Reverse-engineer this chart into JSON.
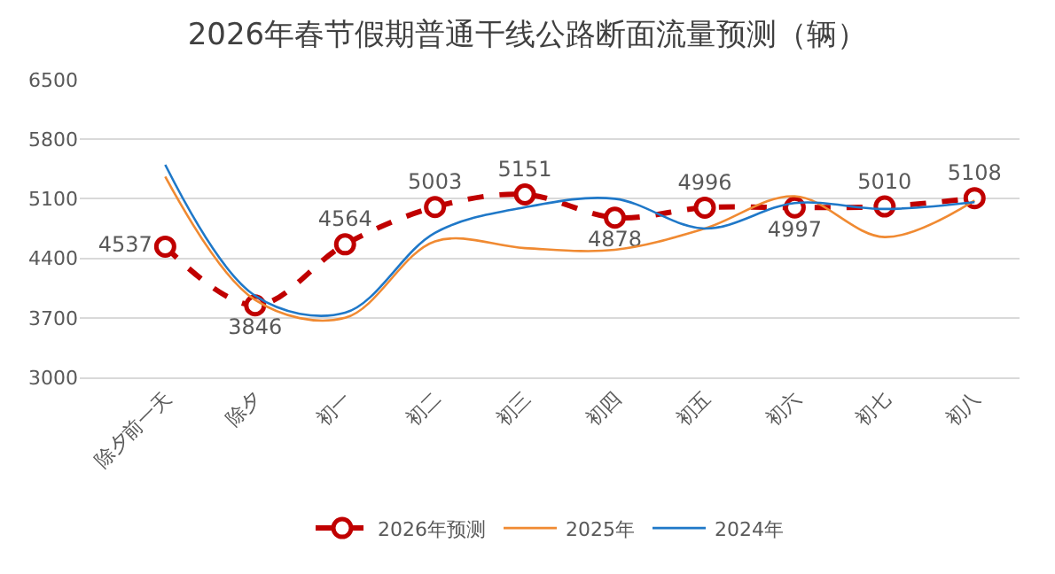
{
  "chart_data": {
    "type": "line",
    "title": "2026年春节假期普通干线公路断面流量预测（辆）",
    "categories": [
      "除夕前一天",
      "除夕",
      "初一",
      "初二",
      "初三",
      "初四",
      "初五",
      "初六",
      "初七",
      "初八"
    ],
    "series": [
      {
        "name": "2026年预测",
        "color": "#c00000",
        "values": [
          4537,
          3846,
          4564,
          5003,
          5151,
          4878,
          4996,
          4997,
          5010,
          5108
        ],
        "value_labels": [
          "4537",
          "3846",
          "4564",
          "5003",
          "5151",
          "4878",
          "4996",
          "4997",
          "5010",
          "5108"
        ],
        "marker": "circle",
        "line_style": "dashed"
      },
      {
        "name": "2025年",
        "color": "#f08a32",
        "values": [
          5360,
          3910,
          3700,
          4600,
          4520,
          4500,
          4750,
          5130,
          4650,
          5080
        ],
        "marker": "none",
        "line_style": "solid"
      },
      {
        "name": "2024年",
        "color": "#1f78c8",
        "values": [
          5500,
          3960,
          3760,
          4700,
          5000,
          5100,
          4750,
          5050,
          4980,
          5060
        ],
        "marker": "none",
        "line_style": "solid"
      }
    ],
    "ylim": [
      3000,
      6500
    ],
    "yticks": [
      3000,
      3700,
      4400,
      5100,
      5800,
      6500
    ],
    "grid": "y",
    "legend": "bottom"
  }
}
